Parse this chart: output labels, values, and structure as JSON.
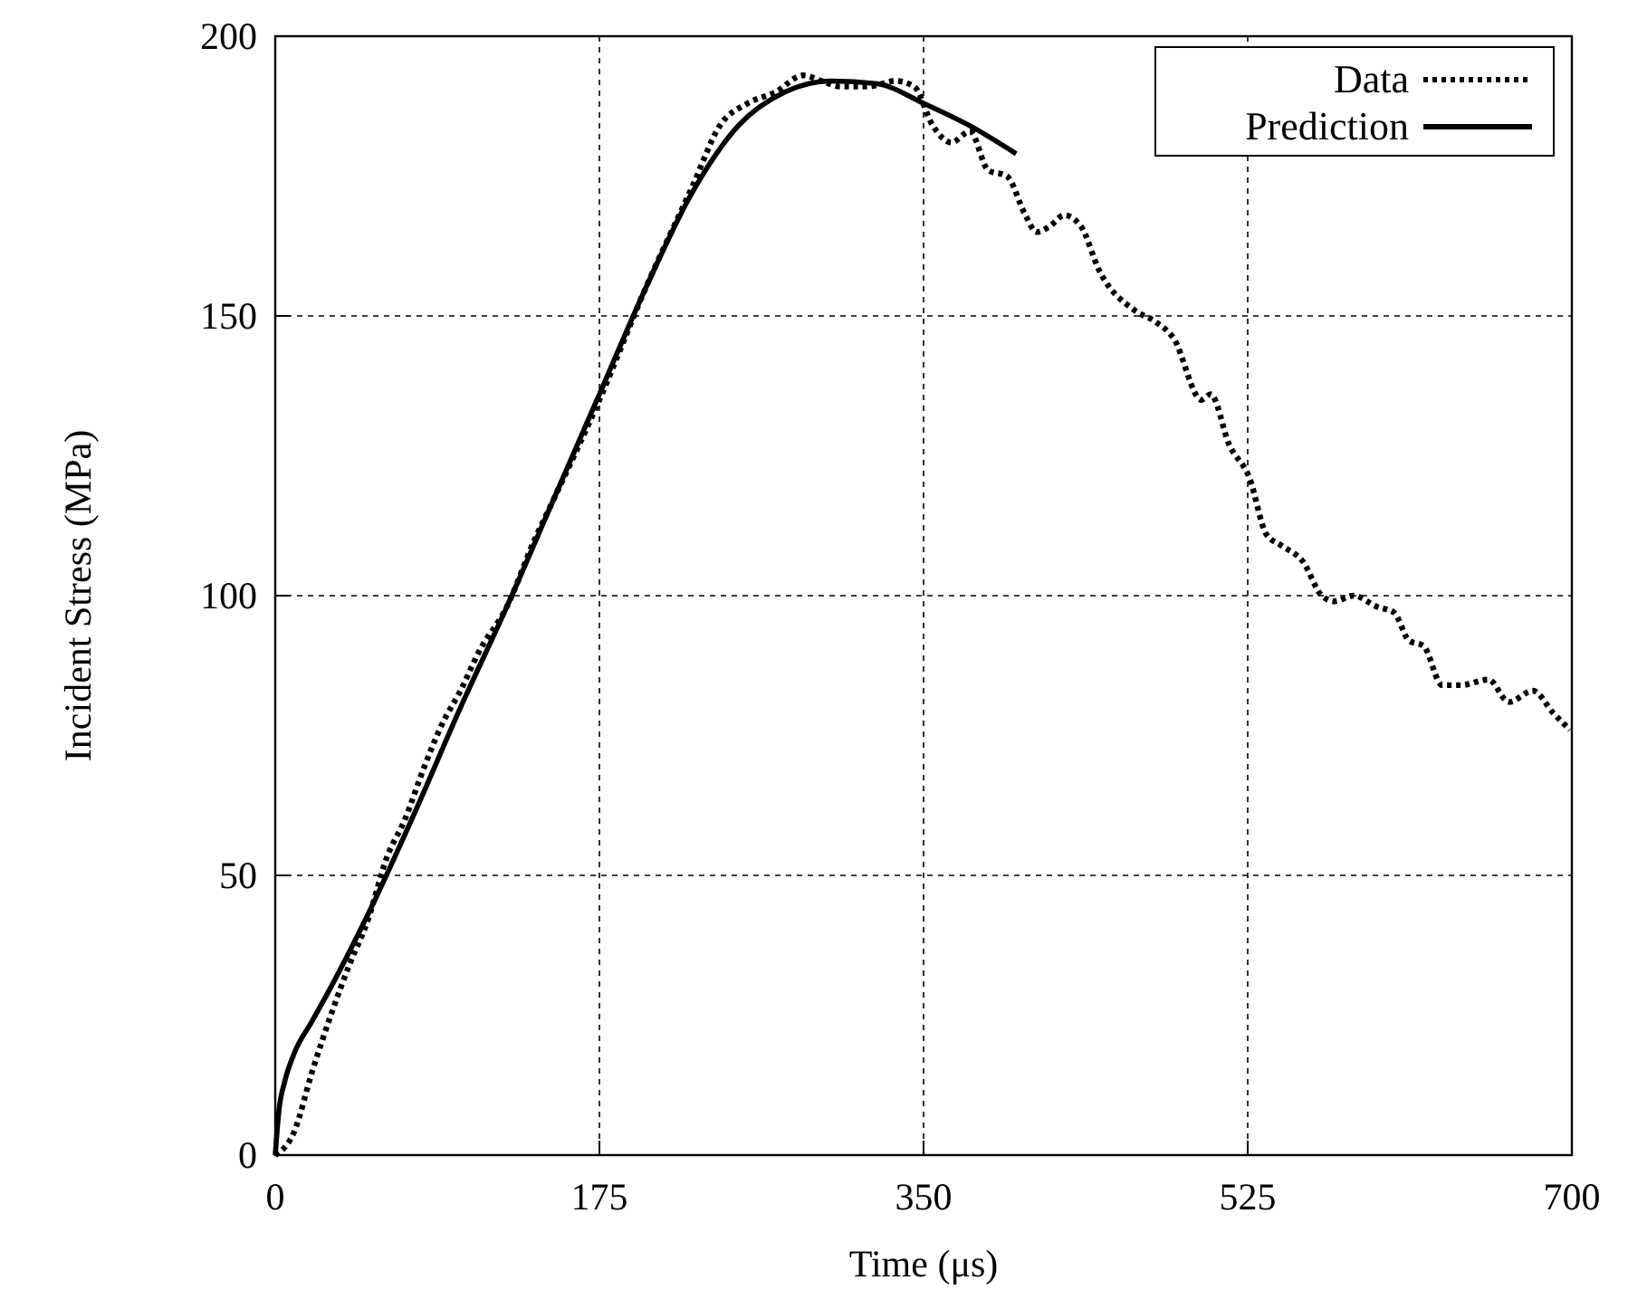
{
  "chart_data": {
    "type": "line",
    "xlabel": "Time (μs)",
    "ylabel": "Incident Stress (MPa)",
    "xlim": [
      0,
      700
    ],
    "ylim": [
      0,
      200
    ],
    "xticks": [
      0,
      175,
      350,
      525,
      700
    ],
    "yticks": [
      0,
      50,
      100,
      150,
      200
    ],
    "grid": true,
    "legend": "top right",
    "series": [
      {
        "name": "Data",
        "color": "#000000",
        "line_style": "dotted",
        "x": [
          0,
          10,
          20,
          30,
          40,
          50,
          60,
          70,
          80,
          90,
          100,
          110,
          125,
          140,
          150,
          175,
          200,
          225,
          240,
          255,
          270,
          285,
          295,
          305,
          320,
          335,
          345,
          355,
          365,
          375,
          385,
          395,
          405,
          411,
          418,
          426,
          435,
          445,
          464,
          475,
          485,
          500,
          505,
          515,
          526,
          535,
          543,
          555,
          565,
          572,
          582,
          595,
          604,
          612,
          620,
          630,
          640,
          655,
          666,
          679,
          690,
          699
        ],
        "values": [
          0,
          4,
          15,
          25,
          34,
          42,
          53,
          60,
          69,
          77,
          83,
          90,
          98,
          110,
          117,
          135,
          155,
          173,
          184,
          188,
          190,
          193,
          192,
          191,
          191,
          192,
          191,
          184,
          181,
          183,
          176,
          175,
          168,
          165,
          166,
          168,
          166,
          158,
          151,
          149,
          146,
          135,
          136,
          127,
          121,
          111,
          109,
          106,
          100,
          99,
          100,
          98,
          97,
          92,
          91,
          84,
          84,
          85,
          81,
          83,
          79,
          76
        ]
      },
      {
        "name": "Prediction",
        "color": "#000000",
        "line_style": "solid",
        "x": [
          0,
          2,
          5,
          10,
          20,
          30,
          50,
          75,
          100,
          125,
          150,
          175,
          200,
          225,
          250,
          275,
          300,
          325,
          350,
          375,
          400
        ],
        "values": [
          0,
          8,
          13,
          18,
          24,
          30,
          43,
          61,
          80,
          98,
          117,
          136,
          155,
          172,
          184,
          190,
          192,
          191.5,
          188,
          184,
          179
        ]
      }
    ]
  }
}
